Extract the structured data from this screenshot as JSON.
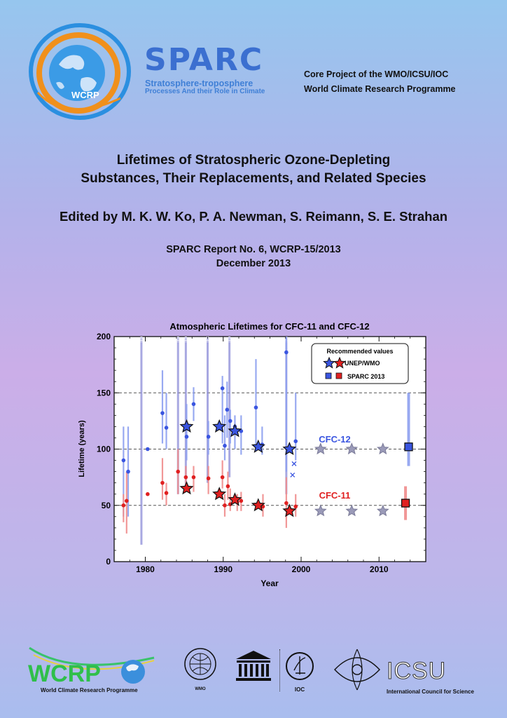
{
  "header": {
    "wcrp_logo_text": "WCRP",
    "sparc_name": "SPARC",
    "sparc_subtitle_1": "Stratosphere-troposphere",
    "sparc_subtitle_2": "Processes And their Role in Climate",
    "core_project_line1": "Core Project of the WMO/ICSU/IOC",
    "core_project_line2": "World Climate Research Programme"
  },
  "report": {
    "title_line1": "Lifetimes of Stratospheric Ozone-Depleting",
    "title_line2": "Substances, Their Replacements, and Related Species",
    "editors": "Edited by M. K. W. Ko, P. A. Newman, S. Reimann, S. E. Strahan",
    "report_number": "SPARC Report No. 6, WCRP-15/2013",
    "date": "December 2013"
  },
  "chart_data": {
    "type": "scatter",
    "title": "Atmospheric Lifetimes for CFC-11 and CFC-12",
    "xlabel": "Year",
    "ylabel": "Lifetime (years)",
    "xlim": [
      1976,
      2016
    ],
    "ylim": [
      0,
      200
    ],
    "xticks": [
      1980,
      1990,
      2000,
      2010
    ],
    "yticks": [
      0,
      50,
      100,
      150,
      200
    ],
    "reference_lines": [
      50,
      100,
      150
    ],
    "legend": {
      "title": "Recommended values",
      "entries": [
        "UNEP/WMO",
        "SPARC 2013"
      ],
      "placement": "top-right"
    },
    "colors": {
      "cfc12": "#3a55e0",
      "cfc11": "#e02020",
      "future": "#9a9ab8"
    },
    "series": [
      {
        "name": "CFC-12",
        "estimates": [
          {
            "x": 1977.2,
            "y": 90,
            "lo": 40,
            "hi": 120
          },
          {
            "x": 1977.8,
            "y": 80,
            "lo": 40,
            "hi": 120
          },
          {
            "x": 1980.3,
            "y": 100,
            "lo": null,
            "hi": null
          },
          {
            "x": 1982.2,
            "y": 132,
            "lo": 105,
            "hi": 170
          },
          {
            "x": 1982.7,
            "y": 119,
            "lo": 100,
            "hi": 150
          },
          {
            "x": 1985.3,
            "y": 111,
            "lo": 90,
            "hi": 140
          },
          {
            "x": 1986.2,
            "y": 140,
            "lo": 125,
            "hi": 155
          },
          {
            "x": 1988.1,
            "y": 111,
            "lo": 95,
            "hi": 125
          },
          {
            "x": 1989.9,
            "y": 154,
            "lo": 105,
            "hi": 165
          },
          {
            "x": 1990.2,
            "y": 103,
            "lo": 90,
            "hi": 130
          },
          {
            "x": 1990.5,
            "y": 135,
            "lo": 110,
            "hi": 160
          },
          {
            "x": 1990.9,
            "y": 125,
            "lo": 105,
            "hi": 135
          },
          {
            "x": 1991.5,
            "y": 120,
            "lo": 100,
            "hi": 130
          },
          {
            "x": 1992.3,
            "y": 116,
            "lo": 95,
            "hi": 130
          },
          {
            "x": 1994.2,
            "y": 137,
            "lo": 100,
            "hi": 180
          },
          {
            "x": 1995.0,
            "y": 104,
            "lo": 95,
            "hi": 120
          },
          {
            "x": 1998.1,
            "y": 186,
            "lo": 80,
            "hi": 200
          },
          {
            "x": 1999.3,
            "y": 107,
            "lo": 90,
            "hi": 150
          }
        ],
        "crosses": [
          {
            "x": 1998.9,
            "y": 77
          },
          {
            "x": 1999.1,
            "y": 87
          }
        ],
        "unep_wmo": [
          {
            "x": 1985.3,
            "y": 120
          },
          {
            "x": 1989.5,
            "y": 120
          },
          {
            "x": 1991.5,
            "y": 116
          },
          {
            "x": 1994.5,
            "y": 102
          },
          {
            "x": 1998.5,
            "y": 100
          }
        ],
        "future_markers": [
          {
            "x": 2002.5,
            "y": 100
          },
          {
            "x": 2006.5,
            "y": 100
          },
          {
            "x": 2010.5,
            "y": 100
          }
        ],
        "sparc_2013": {
          "x": 2013.8,
          "y": 102,
          "lo": 85,
          "hi": 150
        },
        "label": "CFC-12"
      },
      {
        "name": "CFC-11",
        "estimates": [
          {
            "x": 1977.2,
            "y": 50,
            "lo": 35,
            "hi": 60
          },
          {
            "x": 1977.6,
            "y": 54,
            "lo": 25,
            "hi": 80
          },
          {
            "x": 1980.3,
            "y": 60,
            "lo": null,
            "hi": null
          },
          {
            "x": 1982.2,
            "y": 70,
            "lo": 55,
            "hi": 92
          },
          {
            "x": 1982.7,
            "y": 61,
            "lo": 50,
            "hi": 70
          },
          {
            "x": 1984.2,
            "y": 80,
            "lo": 60,
            "hi": 100
          },
          {
            "x": 1985.2,
            "y": 75,
            "lo": 62,
            "hi": 85
          },
          {
            "x": 1986.2,
            "y": 75,
            "lo": 62,
            "hi": 85
          },
          {
            "x": 1988.1,
            "y": 74,
            "lo": 60,
            "hi": 85
          },
          {
            "x": 1989.9,
            "y": 75,
            "lo": 65,
            "hi": 90
          },
          {
            "x": 1990.2,
            "y": 50,
            "lo": 40,
            "hi": 60
          },
          {
            "x": 1990.6,
            "y": 67,
            "lo": 55,
            "hi": 80
          },
          {
            "x": 1990.9,
            "y": 51,
            "lo": 45,
            "hi": 65
          },
          {
            "x": 1991.8,
            "y": 53,
            "lo": 45,
            "hi": 60
          },
          {
            "x": 1992.3,
            "y": 54,
            "lo": 45,
            "hi": 62
          },
          {
            "x": 1995.1,
            "y": 49,
            "lo": 40,
            "hi": 60
          },
          {
            "x": 1998.1,
            "y": 52,
            "lo": 30,
            "hi": 75
          },
          {
            "x": 1999.3,
            "y": 49,
            "lo": 40,
            "hi": 60
          }
        ],
        "unep_wmo": [
          {
            "x": 1985.3,
            "y": 65
          },
          {
            "x": 1989.5,
            "y": 60
          },
          {
            "x": 1991.5,
            "y": 55
          },
          {
            "x": 1994.5,
            "y": 50
          },
          {
            "x": 1998.5,
            "y": 45
          }
        ],
        "future_markers": [
          {
            "x": 2002.5,
            "y": 45
          },
          {
            "x": 2006.5,
            "y": 45
          },
          {
            "x": 2010.5,
            "y": 45
          }
        ],
        "sparc_2013": {
          "x": 2013.4,
          "y": 52,
          "lo": 37,
          "hi": 67
        },
        "label": "CFC-11"
      }
    ],
    "gray_bars": [
      {
        "x": 1979.5,
        "lo": 15,
        "hi": 200
      },
      {
        "x": 1984.2,
        "lo": 60,
        "hi": 200
      },
      {
        "x": 1985.2,
        "lo": 65,
        "hi": 200
      },
      {
        "x": 1988.0,
        "lo": 70,
        "hi": 200
      },
      {
        "x": 1990.8,
        "lo": 75,
        "hi": 200
      },
      {
        "x": 1998.1,
        "lo": 60,
        "hi": 200
      }
    ]
  },
  "footer": {
    "wcrp_text": "WCRP",
    "wcrp_caption": "World Climate Research Programme",
    "wmo_caption": "WMO",
    "unesco_caption": "UNESCO",
    "ioc_caption": "IOC",
    "icsu_text": "ICSU",
    "icsu_caption": "International Council for Science"
  }
}
